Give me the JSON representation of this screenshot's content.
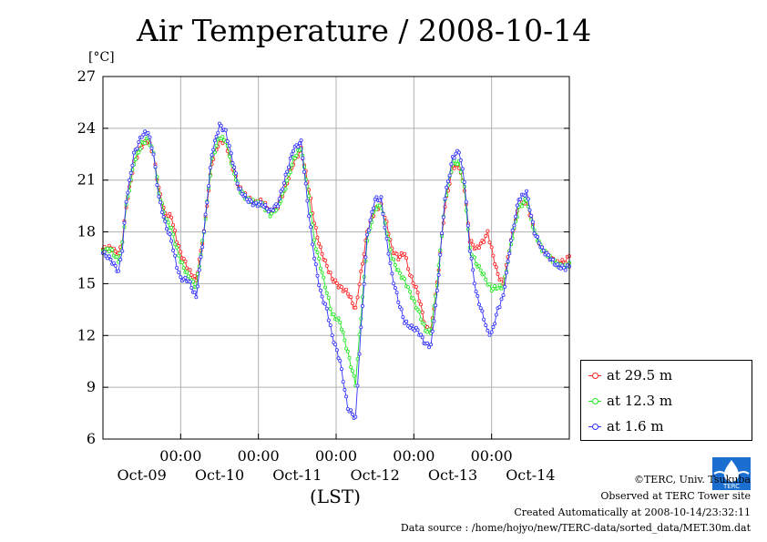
{
  "page": {
    "copyright": "©TERC, Univ. Tsukuba",
    "observed": "Observed at TERC Tower site",
    "created": "Created Automatically at 2008-10-14/23:32:11",
    "source": "Data source : /home/hojyo/new/TERC-data/sorted_data/MET.30m.dat",
    "logo_text": "TERC"
  },
  "chart_data": {
    "type": "line",
    "title": "Air Temperature / 2008-10-14",
    "ylabel": "[°C]",
    "xlabel": "(LST)",
    "ylim": [
      6,
      27
    ],
    "yticks": [
      6,
      9,
      12,
      15,
      18,
      21,
      24,
      27
    ],
    "xlim": [
      0,
      6
    ],
    "x_unit": "days from 2008-10-09 00:00 (LST)",
    "xticks": [
      {
        "pos": 1,
        "time": "00:00"
      },
      {
        "pos": 2,
        "time": "00:00"
      },
      {
        "pos": 3,
        "time": "00:00"
      },
      {
        "pos": 4,
        "time": "00:00"
      },
      {
        "pos": 5,
        "time": "00:00"
      }
    ],
    "day_labels": [
      {
        "pos": 0.5,
        "label": "Oct-09"
      },
      {
        "pos": 1.5,
        "label": "Oct-10"
      },
      {
        "pos": 2.5,
        "label": "Oct-11"
      },
      {
        "pos": 3.5,
        "label": "Oct-12"
      },
      {
        "pos": 4.5,
        "label": "Oct-13"
      },
      {
        "pos": 5.5,
        "label": "Oct-14"
      }
    ],
    "grid": true,
    "legend_position": "right, below plot",
    "series": [
      {
        "name": "at 29.5 m",
        "color": "#ff2020",
        "points": [
          [
            0,
            17.0
          ],
          [
            0.1,
            17.1
          ],
          [
            0.2,
            16.7
          ],
          [
            0.25,
            17.5
          ],
          [
            0.3,
            19.5
          ],
          [
            0.4,
            22.0
          ],
          [
            0.5,
            23.0
          ],
          [
            0.58,
            23.3
          ],
          [
            0.65,
            22.5
          ],
          [
            0.72,
            20.5
          ],
          [
            0.8,
            19.0
          ],
          [
            0.88,
            18.9
          ],
          [
            0.95,
            17.5
          ],
          [
            1.0,
            16.8
          ],
          [
            1.1,
            15.8
          ],
          [
            1.2,
            15.2
          ],
          [
            1.3,
            18.0
          ],
          [
            1.4,
            22.0
          ],
          [
            1.5,
            23.3
          ],
          [
            1.58,
            23.2
          ],
          [
            1.65,
            22.0
          ],
          [
            1.75,
            20.6
          ],
          [
            1.85,
            20.0
          ],
          [
            1.95,
            19.7
          ],
          [
            2.05,
            19.8
          ],
          [
            2.15,
            19.2
          ],
          [
            2.25,
            19.5
          ],
          [
            2.35,
            20.6
          ],
          [
            2.45,
            22.0
          ],
          [
            2.55,
            22.8
          ],
          [
            2.65,
            20.5
          ],
          [
            2.72,
            18.5
          ],
          [
            2.8,
            17.0
          ],
          [
            2.88,
            16.0
          ],
          [
            2.95,
            15.3
          ],
          [
            3.05,
            14.8
          ],
          [
            3.15,
            14.5
          ],
          [
            3.25,
            13.5
          ],
          [
            3.3,
            15.0
          ],
          [
            3.4,
            18.0
          ],
          [
            3.5,
            19.3
          ],
          [
            3.58,
            19.5
          ],
          [
            3.65,
            18.5
          ],
          [
            3.72,
            17.0
          ],
          [
            3.8,
            16.5
          ],
          [
            3.88,
            16.8
          ],
          [
            3.95,
            15.5
          ],
          [
            4.05,
            14.5
          ],
          [
            4.15,
            12.5
          ],
          [
            4.22,
            12.3
          ],
          [
            4.3,
            15.0
          ],
          [
            4.4,
            19.5
          ],
          [
            4.5,
            21.8
          ],
          [
            4.58,
            21.8
          ],
          [
            4.65,
            20.5
          ],
          [
            4.72,
            17.5
          ],
          [
            4.8,
            17.0
          ],
          [
            4.9,
            17.5
          ],
          [
            4.95,
            18.0
          ],
          [
            5.0,
            17.0
          ],
          [
            5.08,
            15.5
          ],
          [
            5.15,
            15.0
          ],
          [
            5.25,
            17.5
          ],
          [
            5.35,
            19.5
          ],
          [
            5.45,
            19.8
          ],
          [
            5.55,
            18.0
          ],
          [
            5.65,
            17.0
          ],
          [
            5.75,
            16.5
          ],
          [
            5.85,
            16.2
          ],
          [
            5.95,
            16.3
          ],
          [
            6.0,
            16.6
          ]
        ]
      },
      {
        "name": "at 12.3 m",
        "color": "#22e822",
        "points": [
          [
            0,
            16.9
          ],
          [
            0.1,
            17.0
          ],
          [
            0.2,
            16.3
          ],
          [
            0.25,
            17.3
          ],
          [
            0.3,
            19.5
          ],
          [
            0.4,
            22.0
          ],
          [
            0.5,
            23.1
          ],
          [
            0.58,
            23.4
          ],
          [
            0.65,
            22.6
          ],
          [
            0.72,
            20.3
          ],
          [
            0.8,
            18.8
          ],
          [
            0.88,
            18.2
          ],
          [
            0.95,
            17.0
          ],
          [
            1.0,
            16.3
          ],
          [
            1.1,
            15.4
          ],
          [
            1.2,
            14.8
          ],
          [
            1.3,
            18.0
          ],
          [
            1.4,
            22.2
          ],
          [
            1.5,
            23.5
          ],
          [
            1.58,
            23.3
          ],
          [
            1.65,
            22.0
          ],
          [
            1.75,
            20.5
          ],
          [
            1.85,
            19.9
          ],
          [
            1.95,
            19.7
          ],
          [
            2.05,
            19.6
          ],
          [
            2.15,
            19.0
          ],
          [
            2.25,
            19.4
          ],
          [
            2.35,
            20.6
          ],
          [
            2.45,
            22.2
          ],
          [
            2.55,
            22.9
          ],
          [
            2.65,
            20.0
          ],
          [
            2.72,
            17.5
          ],
          [
            2.8,
            16.0
          ],
          [
            2.88,
            14.5
          ],
          [
            2.95,
            13.2
          ],
          [
            3.05,
            12.8
          ],
          [
            3.15,
            11.0
          ],
          [
            3.25,
            9.2
          ],
          [
            3.3,
            12.0
          ],
          [
            3.4,
            17.5
          ],
          [
            3.5,
            19.4
          ],
          [
            3.58,
            19.5
          ],
          [
            3.65,
            18.0
          ],
          [
            3.72,
            16.5
          ],
          [
            3.8,
            15.7
          ],
          [
            3.88,
            15.2
          ],
          [
            3.95,
            14.5
          ],
          [
            4.05,
            13.5
          ],
          [
            4.15,
            12.3
          ],
          [
            4.22,
            12.2
          ],
          [
            4.3,
            15.0
          ],
          [
            4.4,
            19.8
          ],
          [
            4.5,
            22.0
          ],
          [
            4.58,
            22.0
          ],
          [
            4.65,
            20.5
          ],
          [
            4.72,
            17.0
          ],
          [
            4.8,
            16.2
          ],
          [
            4.9,
            15.5
          ],
          [
            4.95,
            15.0
          ],
          [
            5.0,
            14.7
          ],
          [
            5.08,
            14.8
          ],
          [
            5.15,
            14.8
          ],
          [
            5.25,
            17.3
          ],
          [
            5.35,
            19.4
          ],
          [
            5.45,
            19.9
          ],
          [
            5.55,
            18.0
          ],
          [
            5.65,
            17.0
          ],
          [
            5.75,
            16.5
          ],
          [
            5.85,
            16.1
          ],
          [
            5.95,
            16.0
          ],
          [
            6.0,
            16.2
          ]
        ]
      },
      {
        "name": "at 1.6 m",
        "color": "#3030ff",
        "points": [
          [
            0,
            16.8
          ],
          [
            0.1,
            16.4
          ],
          [
            0.2,
            15.7
          ],
          [
            0.25,
            17.0
          ],
          [
            0.3,
            19.8
          ],
          [
            0.4,
            22.5
          ],
          [
            0.5,
            23.6
          ],
          [
            0.58,
            23.8
          ],
          [
            0.65,
            22.5
          ],
          [
            0.72,
            20.0
          ],
          [
            0.8,
            18.5
          ],
          [
            0.88,
            17.5
          ],
          [
            0.95,
            16.0
          ],
          [
            1.0,
            15.3
          ],
          [
            1.1,
            15.2
          ],
          [
            1.2,
            14.2
          ],
          [
            1.3,
            18.0
          ],
          [
            1.4,
            22.5
          ],
          [
            1.5,
            24.2
          ],
          [
            1.58,
            23.8
          ],
          [
            1.65,
            22.5
          ],
          [
            1.75,
            20.5
          ],
          [
            1.85,
            19.9
          ],
          [
            1.95,
            19.6
          ],
          [
            2.05,
            19.6
          ],
          [
            2.15,
            19.2
          ],
          [
            2.25,
            19.6
          ],
          [
            2.35,
            21.2
          ],
          [
            2.45,
            22.8
          ],
          [
            2.55,
            23.2
          ],
          [
            2.65,
            19.0
          ],
          [
            2.72,
            16.5
          ],
          [
            2.8,
            14.5
          ],
          [
            2.88,
            13.5
          ],
          [
            2.95,
            12.0
          ],
          [
            3.05,
            10.5
          ],
          [
            3.15,
            7.8
          ],
          [
            3.25,
            7.2
          ],
          [
            3.3,
            11.0
          ],
          [
            3.4,
            17.8
          ],
          [
            3.5,
            19.9
          ],
          [
            3.58,
            19.9
          ],
          [
            3.65,
            17.5
          ],
          [
            3.72,
            15.5
          ],
          [
            3.8,
            14.0
          ],
          [
            3.88,
            12.8
          ],
          [
            3.95,
            12.5
          ],
          [
            4.05,
            12.3
          ],
          [
            4.15,
            11.5
          ],
          [
            4.22,
            11.4
          ],
          [
            4.3,
            14.5
          ],
          [
            4.4,
            20.0
          ],
          [
            4.5,
            22.3
          ],
          [
            4.58,
            22.7
          ],
          [
            4.65,
            21.0
          ],
          [
            4.72,
            17.0
          ],
          [
            4.8,
            14.5
          ],
          [
            4.9,
            13.0
          ],
          [
            4.95,
            12.2
          ],
          [
            5.0,
            12.1
          ],
          [
            5.08,
            13.5
          ],
          [
            5.15,
            14.3
          ],
          [
            5.25,
            17.5
          ],
          [
            5.35,
            19.9
          ],
          [
            5.45,
            20.3
          ],
          [
            5.55,
            18.0
          ],
          [
            5.65,
            17.0
          ],
          [
            5.75,
            16.5
          ],
          [
            5.85,
            16.0
          ],
          [
            5.95,
            15.9
          ],
          [
            6.0,
            16.0
          ]
        ]
      }
    ]
  }
}
